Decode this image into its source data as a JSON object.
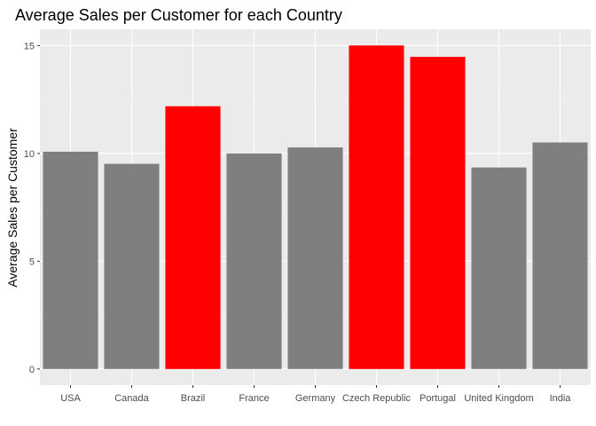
{
  "chart_data": {
    "type": "bar",
    "title": "Average Sales per Customer for each Country",
    "xlabel": "",
    "ylabel": "Average Sales per Customer",
    "categories": [
      "USA",
      "Canada",
      "Brazil",
      "France",
      "Germany",
      "Czech Republic",
      "Portugal",
      "United Kingdom",
      "India"
    ],
    "values": [
      10.08,
      9.52,
      12.19,
      10.0,
      10.28,
      15.01,
      14.48,
      9.35,
      10.51
    ],
    "highlighted": [
      false,
      false,
      true,
      false,
      false,
      true,
      true,
      false,
      false
    ],
    "ylim": [
      -0.75,
      15.76
    ],
    "yticks": [
      0,
      5,
      10,
      15
    ],
    "grid": true,
    "colors": {
      "bar": "#7f7f7f",
      "highlight": "#ff0000",
      "panel": "#ebebeb",
      "grid_major": "#ffffff",
      "grid_minor": "#f2f2f2"
    }
  }
}
